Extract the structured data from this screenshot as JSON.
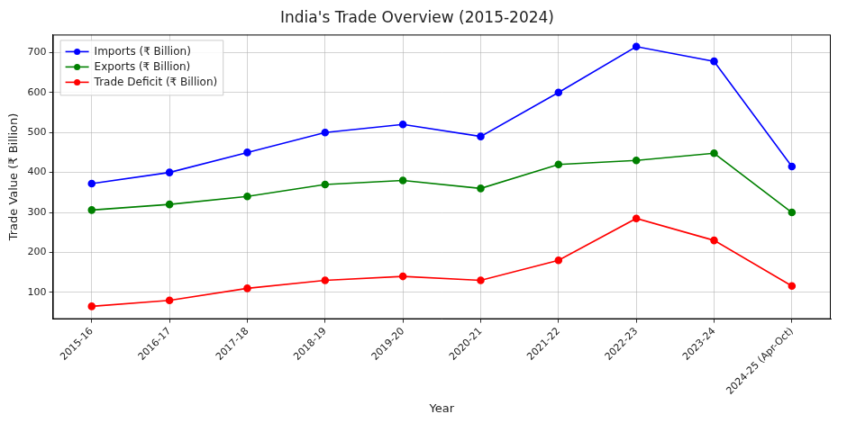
{
  "chart_data": {
    "type": "line",
    "title": "India's Trade Overview (2015-2024)",
    "x_label": "Year",
    "y_label": "Trade Value (₹ Billion)",
    "categories": [
      "2015-16",
      "2016-17",
      "2017-18",
      "2018-19",
      "2019-20",
      "2020-21",
      "2021-22",
      "2022-23",
      "2023-24",
      "2024-25 (Apr-Oct)"
    ],
    "series": [
      {
        "name": "Imports (₹ Billion)",
        "color": "#0000ff",
        "marker": "o",
        "line_style": "solid",
        "values": [
          372,
          400,
          450,
          500,
          520,
          490,
          600,
          715,
          678,
          415
        ]
      },
      {
        "name": "Exports (₹ Billion)",
        "color": "#008000",
        "marker": "o",
        "line_style": "solid",
        "values": [
          306,
          320,
          340,
          370,
          380,
          360,
          420,
          430,
          448,
          300
        ]
      },
      {
        "name": "Trade Deficit (₹ Billion)",
        "color": "#ff0000",
        "marker": "o",
        "line_style": "solid",
        "values": [
          65,
          80,
          110,
          130,
          140,
          130,
          180,
          285,
          230,
          116
        ]
      }
    ],
    "ylim": [
      33,
      745
    ],
    "yticks": [
      100,
      200,
      300,
      400,
      500,
      600,
      700
    ],
    "grid": true,
    "legend": "upper left"
  }
}
